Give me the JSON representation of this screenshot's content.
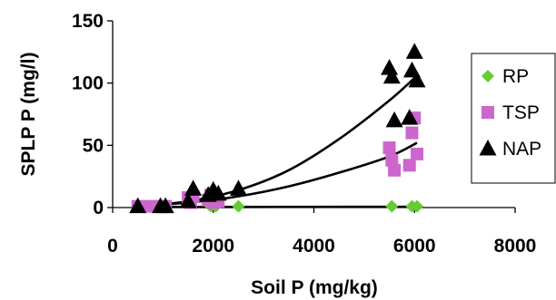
{
  "chart_data": {
    "type": "scatter",
    "xlabel": "Soil P (mg/kg)",
    "ylabel": "SPLP P (mg/l)",
    "xlim": [
      0,
      8000
    ],
    "ylim": [
      0,
      150
    ],
    "x_ticks": [
      "0",
      "2000",
      "4000",
      "6000",
      "8000"
    ],
    "y_ticks": [
      "0",
      "50",
      "100",
      "150"
    ],
    "x_tick_values": [
      0,
      2000,
      4000,
      6000,
      8000
    ],
    "y_tick_values": [
      0,
      50,
      100,
      150
    ],
    "grid": false,
    "legend_position": "right",
    "series": [
      {
        "name": "RP",
        "marker": "diamond",
        "color": "#66CC33",
        "points": [
          [
            1950,
            1
          ],
          [
            2050,
            1
          ],
          [
            2500,
            1
          ],
          [
            5550,
            1
          ],
          [
            5950,
            1
          ],
          [
            6050,
            1
          ]
        ],
        "trendline": [
          [
            500,
            0.5
          ],
          [
            6050,
            0.6
          ]
        ]
      },
      {
        "name": "TSP",
        "marker": "square",
        "color": "#CC66CC",
        "points": [
          [
            500,
            1
          ],
          [
            750,
            1
          ],
          [
            950,
            1
          ],
          [
            1050,
            1
          ],
          [
            1500,
            8
          ],
          [
            1550,
            4
          ],
          [
            1600,
            9
          ],
          [
            1900,
            6
          ],
          [
            1950,
            10
          ],
          [
            2000,
            4
          ],
          [
            2100,
            5
          ],
          [
            5500,
            48
          ],
          [
            5550,
            38
          ],
          [
            5600,
            30
          ],
          [
            5950,
            60
          ],
          [
            6000,
            72
          ],
          [
            5900,
            34
          ],
          [
            6050,
            43
          ]
        ],
        "trendline": [
          [
            500,
            1
          ],
          [
            1500,
            4
          ],
          [
            2500,
            9
          ],
          [
            3500,
            17
          ],
          [
            4500,
            28
          ],
          [
            5500,
            41
          ],
          [
            6050,
            52
          ]
        ]
      },
      {
        "name": "NAP",
        "marker": "triangle",
        "color": "#000000",
        "points": [
          [
            500,
            1
          ],
          [
            950,
            1
          ],
          [
            1050,
            1
          ],
          [
            1500,
            5
          ],
          [
            1600,
            15
          ],
          [
            1900,
            10
          ],
          [
            2000,
            14
          ],
          [
            2100,
            11
          ],
          [
            2500,
            15
          ],
          [
            5500,
            112
          ],
          [
            5550,
            105
          ],
          [
            5600,
            70
          ],
          [
            5900,
            72
          ],
          [
            5950,
            110
          ],
          [
            6000,
            125
          ],
          [
            6050,
            102
          ]
        ],
        "trendline": [
          [
            500,
            1
          ],
          [
            1500,
            5
          ],
          [
            2500,
            14
          ],
          [
            3500,
            30
          ],
          [
            4500,
            55
          ],
          [
            5500,
            86
          ],
          [
            6050,
            106
          ]
        ]
      }
    ]
  }
}
